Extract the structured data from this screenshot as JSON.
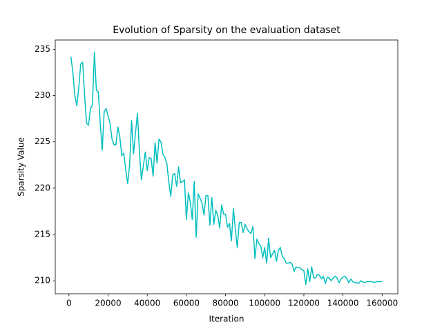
{
  "chart_data": {
    "type": "line",
    "title": "Evolution of Sparsity on the evaluation dataset",
    "xlabel": "Iteration",
    "ylabel": "Sparsity Value",
    "xlim": [
      -7000,
      168000
    ],
    "ylim": [
      208.6,
      236.0
    ],
    "xticks": [
      0,
      20000,
      40000,
      60000,
      80000,
      100000,
      120000,
      140000,
      160000
    ],
    "yticks": [
      210,
      215,
      220,
      225,
      230,
      235
    ],
    "x": [
      1000,
      2000,
      3000,
      4000,
      5000,
      6000,
      7000,
      8000,
      9000,
      10000,
      11000,
      12000,
      13000,
      14000,
      15000,
      16000,
      17000,
      18000,
      19000,
      20000,
      21000,
      22000,
      23000,
      24000,
      25000,
      26000,
      27000,
      28000,
      29000,
      30000,
      31000,
      32000,
      33000,
      34000,
      35000,
      36000,
      37000,
      38000,
      39000,
      40000,
      41000,
      42000,
      43000,
      44000,
      45000,
      46000,
      47000,
      48000,
      49000,
      50000,
      51000,
      52000,
      53000,
      54000,
      55000,
      56000,
      57000,
      58000,
      59000,
      60000,
      61000,
      62000,
      63000,
      64000,
      65000,
      66000,
      67000,
      68000,
      69000,
      70000,
      71000,
      72000,
      73000,
      74000,
      75000,
      76000,
      77000,
      78000,
      79000,
      80000,
      81000,
      82000,
      83000,
      84000,
      85000,
      86000,
      87000,
      88000,
      89000,
      90000,
      91000,
      92000,
      93000,
      94000,
      95000,
      96000,
      97000,
      98000,
      99000,
      100000,
      101000,
      102000,
      103000,
      104000,
      105000,
      106000,
      107000,
      108000,
      109000,
      110000,
      111000,
      112000,
      113000,
      114000,
      115000,
      116000,
      117000,
      118000,
      119000,
      120000,
      121000,
      122000,
      123000,
      124000,
      125000,
      126000,
      127000,
      128000,
      129000,
      130000,
      131000,
      132000,
      133000,
      134000,
      135000,
      136000,
      137000,
      138000,
      139000,
      140000,
      141000,
      142000,
      143000,
      144000,
      145000,
      146000,
      147000,
      148000,
      149000,
      150000,
      151000,
      152000,
      153000,
      154000,
      155000,
      156000,
      157000,
      158000,
      159000,
      160000
    ],
    "series": [
      {
        "color": "#00bfbf",
        "values": [
          234.2,
          232.5,
          230.0,
          228.9,
          230.8,
          233.4,
          233.6,
          230.0,
          227.0,
          226.8,
          228.6,
          229.0,
          234.7,
          230.6,
          230.4,
          227.0,
          224.1,
          228.3,
          228.6,
          227.8,
          227.0,
          225.3,
          224.7,
          224.7,
          226.6,
          225.5,
          223.5,
          223.8,
          222.0,
          220.5,
          222.5,
          227.3,
          223.7,
          226.0,
          228.1,
          224.0,
          220.9,
          222.4,
          223.9,
          221.9,
          223.3,
          223.2,
          221.3,
          224.9,
          222.7,
          225.3,
          225.0,
          223.7,
          223.3,
          222.7,
          220.7,
          219.1,
          221.4,
          221.6,
          220.2,
          222.3,
          220.6,
          220.7,
          220.9,
          216.6,
          219.5,
          218.5,
          216.6,
          220.7,
          214.7,
          219.4,
          218.9,
          218.4,
          217.1,
          219.2,
          219.2,
          216.0,
          219.0,
          216.1,
          217.6,
          217.1,
          215.7,
          218.2,
          217.2,
          217.2,
          215.8,
          216.2,
          214.3,
          217.8,
          215.6,
          213.6,
          216.3,
          216.3,
          215.2,
          216.1,
          215.6,
          215.3,
          215.1,
          215.9,
          212.4,
          214.5,
          214.0,
          213.8,
          212.5,
          213.6,
          211.9,
          214.6,
          212.5,
          212.9,
          213.3,
          212.1,
          213.3,
          213.6,
          212.6,
          212.4,
          211.9,
          211.9,
          212.0,
          211.8,
          211.0,
          211.5,
          211.4,
          211.4,
          211.2,
          211.1,
          209.6,
          211.3,
          209.9,
          211.5,
          210.3,
          210.3,
          210.7,
          210.6,
          210.2,
          210.5,
          209.7,
          210.4,
          210.3,
          210.0,
          210.3,
          210.5,
          210.3,
          209.8,
          210.2,
          210.4,
          210.5,
          210.2,
          209.8,
          210.2,
          209.9,
          209.8,
          209.8,
          209.7,
          210.0,
          209.9,
          209.8,
          209.9,
          209.9,
          209.9,
          209.9,
          209.8,
          209.9,
          209.9,
          209.9,
          209.9
        ]
      }
    ]
  }
}
